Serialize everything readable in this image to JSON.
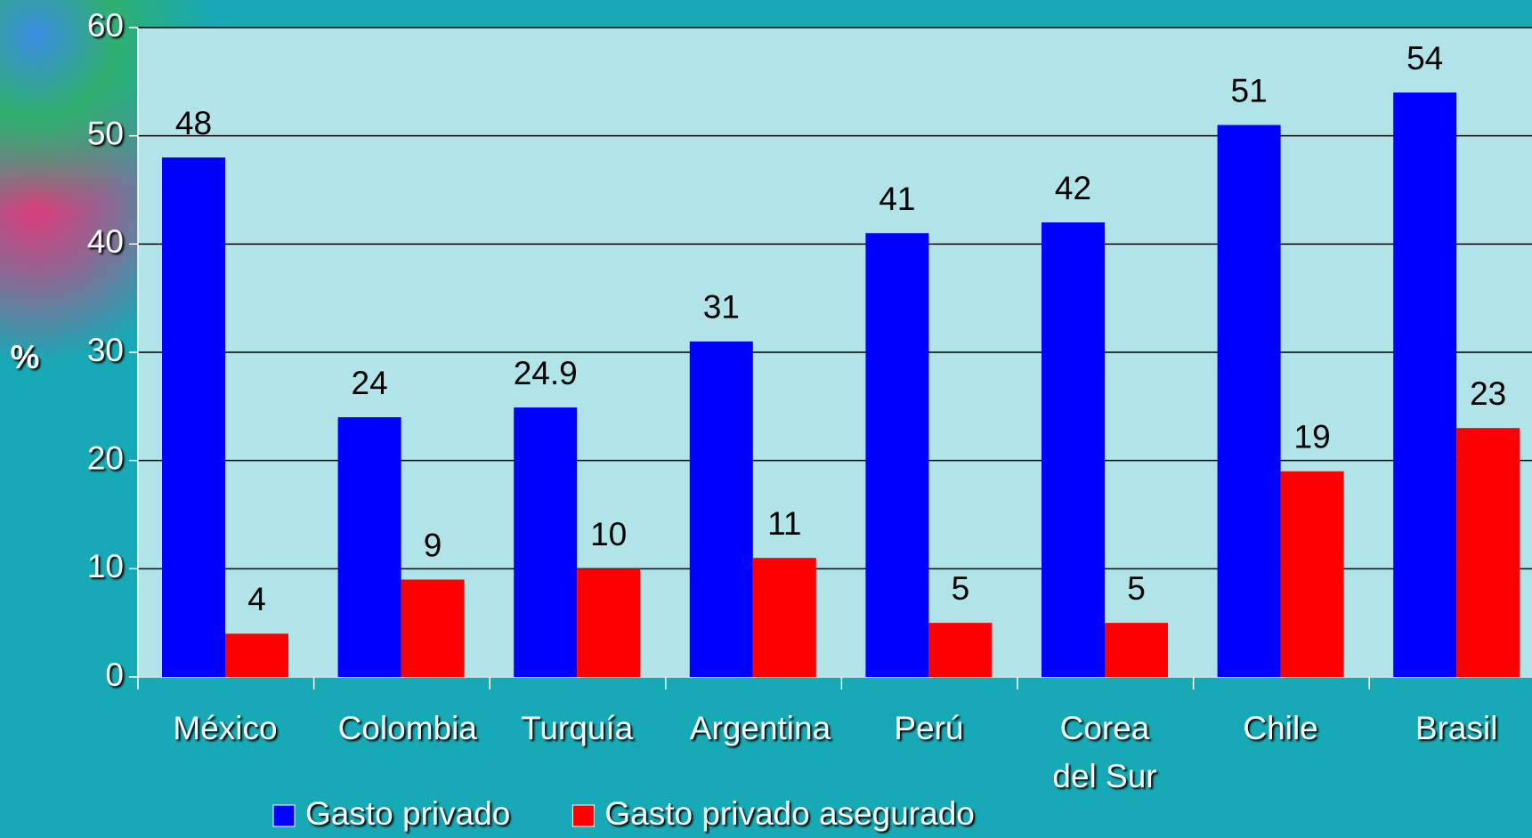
{
  "chart_data": {
    "type": "bar",
    "y_label": "%",
    "categories": [
      "México",
      "Colombia",
      "Turquía",
      "Argentina",
      "Perú",
      "Corea del Sur",
      "Chile",
      "Brasil"
    ],
    "series": [
      {
        "name": "Gasto privado",
        "color": "#0000ff",
        "values": [
          48,
          24,
          24.9,
          31,
          41,
          42,
          51,
          54
        ]
      },
      {
        "name": "Gasto privado asegurado",
        "color": "#ff0000",
        "values": [
          4,
          9,
          10,
          11,
          5,
          5,
          19,
          23
        ]
      }
    ],
    "ylim": [
      0,
      60
    ],
    "yticks": [
      0,
      10,
      20,
      30,
      40,
      50,
      60
    ],
    "grid": true,
    "legend": "bottom"
  }
}
